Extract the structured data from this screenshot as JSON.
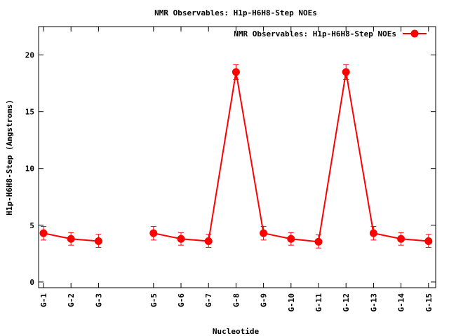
{
  "chart_data": {
    "type": "line",
    "title": "NMR Observables: H1p-H6H8-Step NOEs",
    "xlabel": "Nucleotide",
    "ylabel": "H1p-H6H8-Step (Angstroms)",
    "ylim": [
      -0.5,
      22.5
    ],
    "y_ticks": [
      0,
      5,
      10,
      15,
      20
    ],
    "categories": [
      "G-1",
      "G-2",
      "G-3",
      "",
      "G-5",
      "G-6",
      "G-7",
      "G-8",
      "G-9",
      "G-10",
      "G-11",
      "G-12",
      "G-13",
      "G-14",
      "G-15"
    ],
    "legend_position": "top-right",
    "grid": false,
    "series": [
      {
        "name": "NMR Observables: H1p-H6H8-Step NOEs",
        "color": "#ff0000",
        "values": [
          4.3,
          3.8,
          3.6,
          null,
          4.3,
          3.8,
          3.6,
          18.5,
          4.3,
          3.8,
          3.55,
          18.5,
          4.3,
          3.8,
          3.6
        ],
        "error_low": [
          3.7,
          3.25,
          3.05,
          null,
          3.7,
          3.25,
          3.05,
          17.85,
          3.7,
          3.25,
          3.0,
          17.85,
          3.7,
          3.25,
          3.05
        ],
        "error_high": [
          4.9,
          4.35,
          4.2,
          null,
          4.9,
          4.35,
          4.2,
          19.15,
          4.9,
          4.35,
          4.15,
          19.15,
          4.9,
          4.35,
          4.2
        ]
      }
    ]
  }
}
